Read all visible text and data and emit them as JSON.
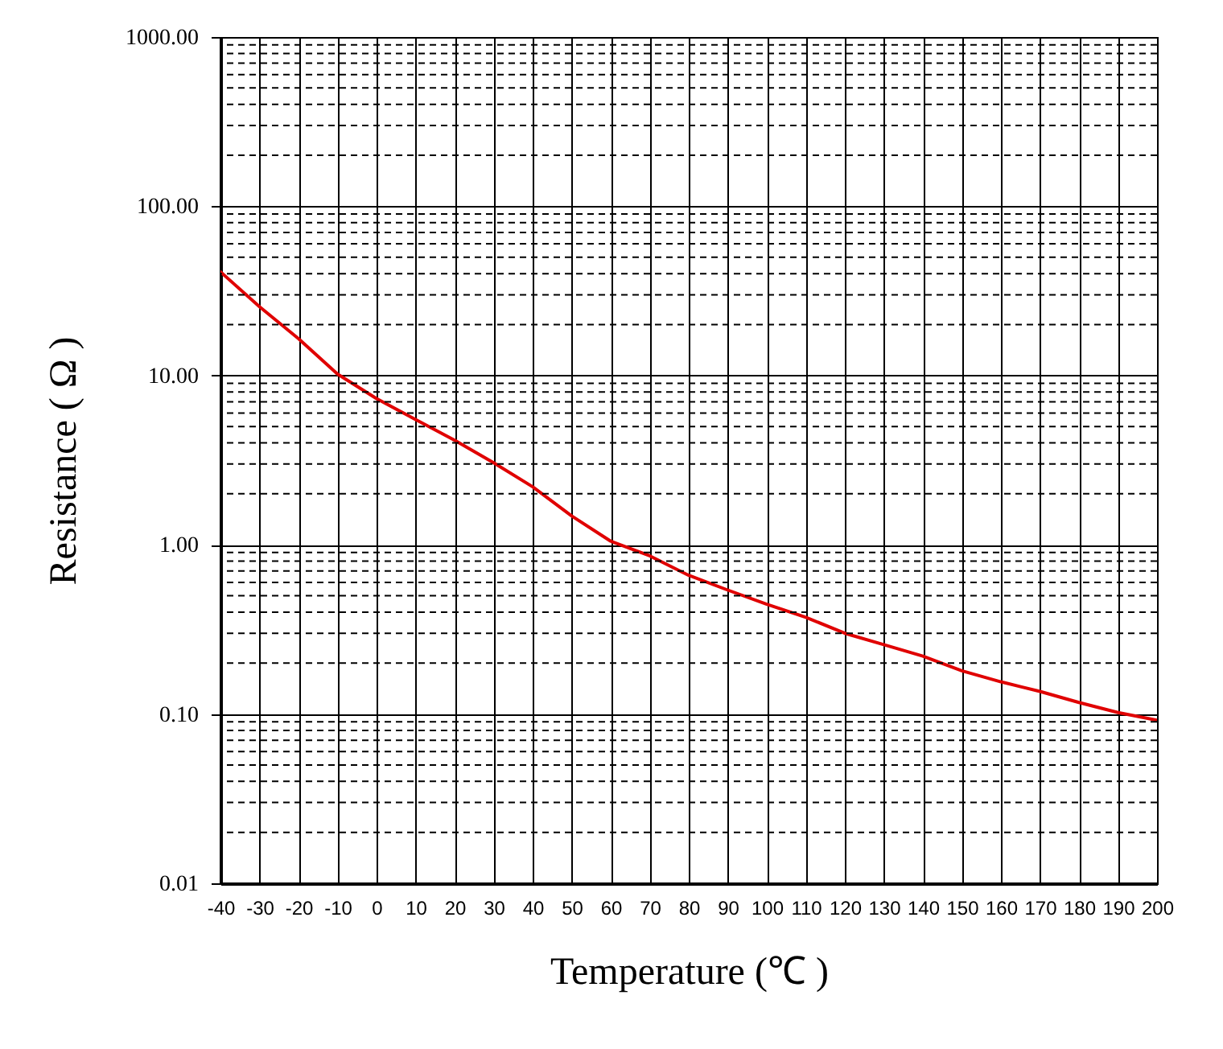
{
  "chart_data": {
    "type": "line",
    "xlabel": "Temperature (℃ )",
    "ylabel": "Resistance ( Ω )",
    "x": [
      -40,
      -30,
      -20,
      -10,
      0,
      10,
      20,
      30,
      40,
      50,
      60,
      70,
      80,
      90,
      100,
      110,
      120,
      130,
      140,
      150,
      160,
      170,
      180,
      190,
      200
    ],
    "series": [
      {
        "color": "#e00000",
        "values": [
          41,
          25.5,
          16.5,
          10.2,
          7.3,
          5.5,
          4.15,
          3.05,
          2.2,
          1.48,
          1.05,
          0.86,
          0.66,
          0.54,
          0.445,
          0.373,
          0.3,
          0.257,
          0.22,
          0.18,
          0.155,
          0.136,
          0.117,
          0.102,
          0.092
        ]
      }
    ],
    "xlim": [
      -40,
      200
    ],
    "xticks": [
      -40,
      -30,
      -20,
      -10,
      0,
      10,
      20,
      30,
      40,
      50,
      60,
      70,
      80,
      90,
      100,
      110,
      120,
      130,
      140,
      150,
      160,
      170,
      180,
      190,
      200
    ],
    "ylim": [
      0.01,
      1000
    ],
    "yticks": [
      {
        "value": 0.01,
        "label": "0.01"
      },
      {
        "value": 0.1,
        "label": "0.10"
      },
      {
        "value": 1,
        "label": "1.00"
      },
      {
        "value": 10,
        "label": "10.00"
      },
      {
        "value": 100,
        "label": "100.00"
      },
      {
        "value": 1000,
        "label": "1000.00"
      }
    ],
    "log": true,
    "grid": true,
    "legend": false,
    "marker": "none",
    "line_style": "solid"
  }
}
